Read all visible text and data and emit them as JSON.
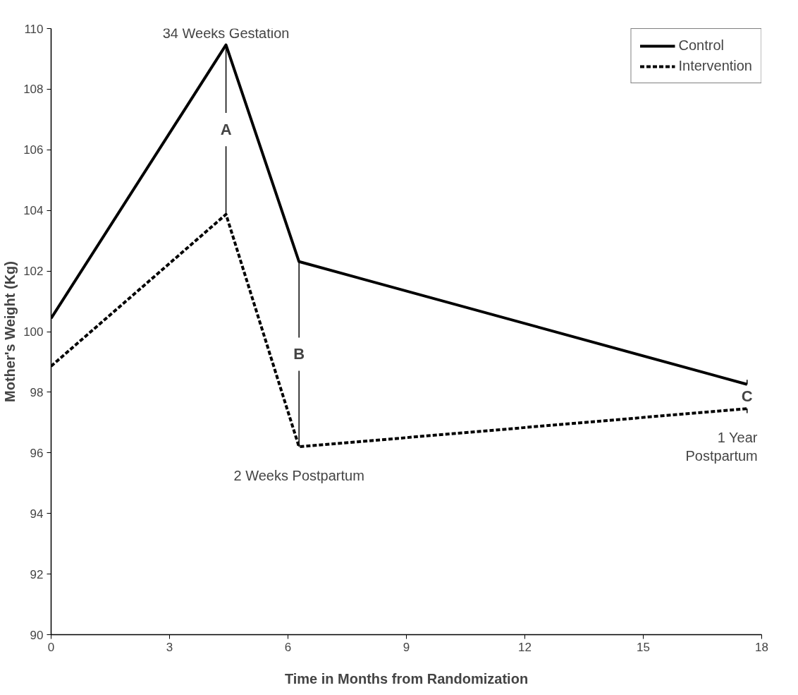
{
  "chart_data": {
    "type": "line",
    "xlabel": "Time in Months from Randomization",
    "ylabel": "Mother's Weight (Kg)",
    "x": [
      0,
      4.43,
      6.28,
      17.63
    ],
    "series": [
      {
        "name": "Control",
        "color": "#000000",
        "line_style": "solid",
        "values": [
          100.44,
          109.46,
          102.31,
          98.26
        ]
      },
      {
        "name": "Intervention",
        "color": "#000000",
        "line_style": "dashed",
        "values": [
          98.86,
          103.87,
          96.2,
          97.46
        ]
      }
    ],
    "xlim": [
      0,
      18
    ],
    "xticks": [
      0,
      3,
      6,
      9,
      12,
      15,
      18
    ],
    "ylim": [
      90,
      110
    ],
    "yticks": [
      90,
      92,
      94,
      96,
      98,
      100,
      102,
      104,
      106,
      108,
      110
    ],
    "grid": false,
    "legend": "top right",
    "marker": "none",
    "annotations": [
      {
        "text": "A",
        "x": 4.43,
        "y": 109.46
      },
      {
        "text": "B",
        "x": 6.28,
        "y": 102.31
      },
      {
        "text": "C",
        "x": 17.63,
        "y": 98.26
      },
      {
        "text": "34 Weeks Gestation",
        "x": 4.43,
        "y": 109.46
      },
      {
        "text": "2 Weeks Postpartum",
        "x": 6.28,
        "y": 96.2
      },
      {
        "text": "1 Year\nPostpartum",
        "x": 17.63,
        "y": 97.46
      }
    ]
  }
}
